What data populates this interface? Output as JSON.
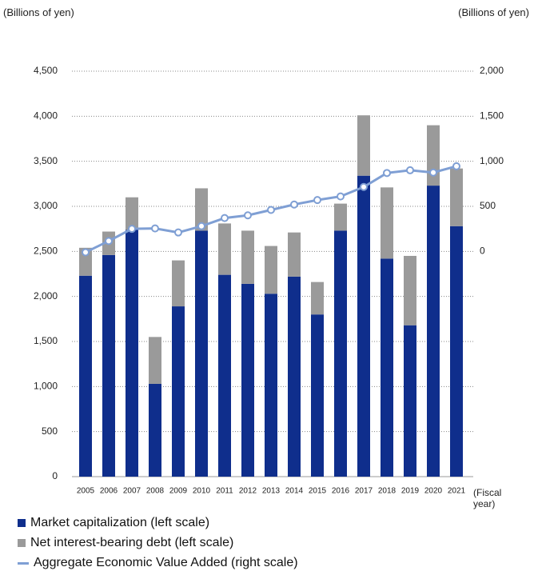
{
  "chart_data": {
    "type": "bar",
    "y_axis_label": "(Billions of yen)",
    "y2_axis_label": "(Billions of yen)",
    "x_axis_label": "(Fiscal year)",
    "categories": [
      "2005",
      "2006",
      "2007",
      "2008",
      "2009",
      "2010",
      "2011",
      "2012",
      "2013",
      "2014",
      "2015",
      "2016",
      "2017",
      "2018",
      "2019",
      "2020",
      "2021"
    ],
    "series": [
      {
        "name": "Market capitalization (left scale)",
        "color": "#0f2e8c",
        "type": "bar",
        "stack": true,
        "values": [
          2230,
          2460,
          2740,
          1030,
          1890,
          2730,
          2240,
          2140,
          2030,
          2220,
          1800,
          2730,
          3340,
          2420,
          1680,
          3230,
          2780
        ]
      },
      {
        "name": "Net interest-bearing debt (left scale)",
        "color": "#9a9a9a",
        "type": "bar",
        "stack": true,
        "values": [
          310,
          260,
          360,
          520,
          510,
          470,
          570,
          590,
          530,
          490,
          360,
          300,
          670,
          790,
          770,
          670,
          640
        ]
      },
      {
        "name": "Aggregate Economic Value Added (right scale)",
        "color": "#7f9fd4",
        "type": "line",
        "axis": "y2",
        "values": [
          -10,
          115,
          250,
          255,
          210,
          280,
          370,
          400,
          460,
          520,
          570,
          610,
          715,
          870,
          900,
          875,
          945
        ]
      }
    ],
    "ylim": [
      0,
      4500
    ],
    "yticks": [
      0,
      500,
      {
        "value": 1000,
        "label": "1,000"
      },
      {
        "value": 1500,
        "label": "1,500"
      },
      {
        "value": 2000,
        "label": "2,000"
      },
      {
        "value": 2500,
        "label": "2,500"
      },
      {
        "value": 3000,
        "label": "3,000"
      },
      {
        "value": 3500,
        "label": "3,500"
      },
      {
        "value": 4000,
        "label": "4,000"
      },
      {
        "value": 4500,
        "label": "4,500"
      }
    ],
    "y2lim": [
      -2500,
      2000
    ],
    "y2ticks": [
      0,
      500,
      {
        "value": 1000,
        "label": "1,000"
      },
      {
        "value": 1500,
        "label": "1,500"
      },
      {
        "value": 2000,
        "label": "2,000"
      }
    ],
    "grid": true,
    "legend": "bottom"
  }
}
